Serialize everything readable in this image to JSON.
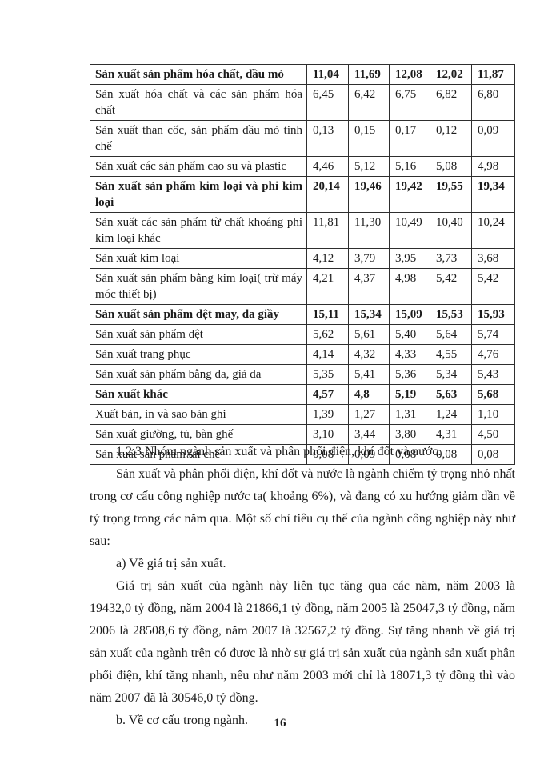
{
  "table": {
    "rows": [
      {
        "label": "Sản xuất sản phẩm hóa chất, dầu mỏ",
        "bold": true,
        "values": [
          "11,04",
          "11,69",
          "12,08",
          "12,02",
          "11,87"
        ]
      },
      {
        "label": "Sản xuất hóa chất và các sản phẩm hóa chất",
        "bold": false,
        "values": [
          "6,45",
          "6,42",
          "6,75",
          "6,82",
          "6,80"
        ]
      },
      {
        "label": "Sản xuất than cốc, sản phẩm dầu mỏ tinh chế",
        "bold": false,
        "values": [
          "0,13",
          "0,15",
          "0,17",
          "0,12",
          "0,09"
        ]
      },
      {
        "label": "Sản xuất các sản phẩm cao su và plastic",
        "bold": false,
        "values": [
          "4,46",
          "5,12",
          "5,16",
          "5,08",
          "4,98"
        ]
      },
      {
        "label": "Sản xuất sản phẩm kim loại và phi kim loại",
        "bold": true,
        "values": [
          "20,14",
          "19,46",
          "19,42",
          "19,55",
          "19,34"
        ]
      },
      {
        "label": "Sản xuất các sản phẩm từ chất khoáng phi kim loại khác",
        "bold": false,
        "values": [
          "11,81",
          "11,30",
          "10,49",
          "10,40",
          "10,24"
        ]
      },
      {
        "label": "Sản xuất kim loại",
        "bold": false,
        "values": [
          "4,12",
          "3,79",
          "3,95",
          "3,73",
          "3,68"
        ]
      },
      {
        "label": "Sản xuất sản phẩm bằng kim loại( trừ máy móc thiết bị)",
        "bold": false,
        "values": [
          "4,21",
          "4,37",
          "4,98",
          "5,42",
          "5,42"
        ]
      },
      {
        "label": "Sản xuất sản phẩm dệt may, da giầy",
        "bold": true,
        "values": [
          "15,11",
          "15,34",
          "15,09",
          "15,53",
          "15,93"
        ]
      },
      {
        "label": "Sản xuất sản phẩm dệt",
        "bold": false,
        "values": [
          "5,62",
          "5,61",
          "5,40",
          "5,64",
          "5,74"
        ]
      },
      {
        "label": "Sản xuất trang phục",
        "bold": false,
        "values": [
          "4,14",
          "4,32",
          "4,33",
          "4,55",
          "4,76"
        ]
      },
      {
        "label": "Sản xuất sản phẩm bằng da, giả da",
        "bold": false,
        "values": [
          "5,35",
          "5,41",
          "5,36",
          "5,34",
          "5,43"
        ]
      },
      {
        "label": "Sản xuất khác",
        "bold": true,
        "values": [
          "4,57",
          "4,8",
          "5,19",
          "5,63",
          "5,68"
        ]
      },
      {
        "label": "Xuất bản, in và sao bản ghi",
        "bold": false,
        "values": [
          "1,39",
          "1,27",
          "1,31",
          "1,24",
          "1,10"
        ]
      },
      {
        "label": "Sản xuất giường, tủ, bàn ghế",
        "bold": false,
        "values": [
          "3,10",
          "3,44",
          "3,80",
          "4,31",
          "4,50"
        ]
      },
      {
        "label": "Sản xuất sản phẩm tái chế",
        "bold": false,
        "values": [
          "0,08",
          "0,09",
          "0,08",
          "0,08",
          "0,08"
        ]
      }
    ]
  },
  "content": {
    "heading": "1.2.3 Nhóm ngành sản xuất và phân phối điện, khí đốt và nước.",
    "para1": "Sản xuất và phân phối điện, khí đốt và nước là ngành chiếm tỷ trọng nhỏ nhất trong cơ cấu công nghiệp nước ta( khoảng 6%), và đang có xu hướng giảm dần về tỷ trọng trong các năm qua. Một số chỉ tiêu cụ thể của ngành công nghiệp này như sau:",
    "item_a": "a) Về giá trị sản xuất.",
    "para2": "Giá trị sản xuất của ngành này liên tục tăng qua các năm, năm 2003 là 19432,0 tỷ đồng, năm 2004 là 21866,1 tỷ đồng, năm 2005 là 25047,3 tỷ đồng, năm 2006 là 28508,6 tỷ đồng, năm 2007 là 32567,2 tỷ đồng. Sự tăng nhanh về giá trị sản xuất của ngành trên có được là nhờ sự giá trị sản xuất của ngành sản xuất phân phối điện, khí tăng nhanh, nếu như năm 2003 mới chỉ là 18071,3 tỷ đồng thì vào năm 2007 đã là 30546,0 tỷ đồng.",
    "item_b": "b. Về cơ cấu trong ngành."
  },
  "footer": {
    "page_number": "16"
  }
}
